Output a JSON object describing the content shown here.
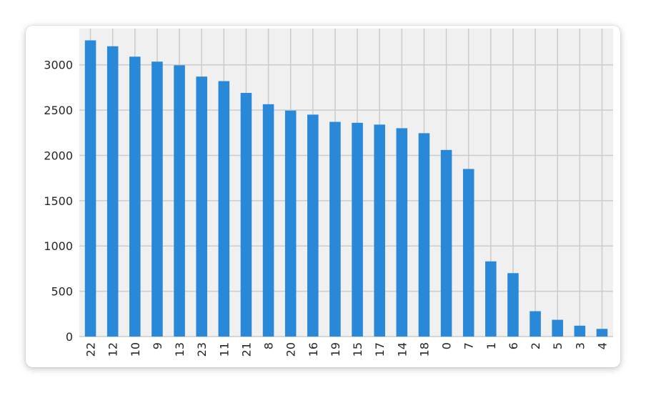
{
  "chart_data": {
    "type": "bar",
    "title": "",
    "xlabel": "",
    "ylabel": "",
    "categories": [
      "22",
      "12",
      "10",
      "9",
      "13",
      "23",
      "11",
      "21",
      "8",
      "20",
      "16",
      "19",
      "15",
      "17",
      "14",
      "18",
      "0",
      "7",
      "1",
      "6",
      "2",
      "5",
      "3",
      "4"
    ],
    "values": [
      3270,
      3205,
      3090,
      3035,
      2995,
      2870,
      2820,
      2690,
      2565,
      2495,
      2450,
      2370,
      2360,
      2340,
      2300,
      2245,
      2060,
      1850,
      830,
      700,
      280,
      185,
      120,
      85
    ],
    "yticks": [
      0,
      500,
      1000,
      1500,
      2000,
      2500,
      3000
    ],
    "ylim": [
      0,
      3400
    ],
    "grid": true,
    "bar_color": "#2a88d8",
    "plot_background": "#f0f0f0",
    "grid_color": "#cbcbcb"
  }
}
